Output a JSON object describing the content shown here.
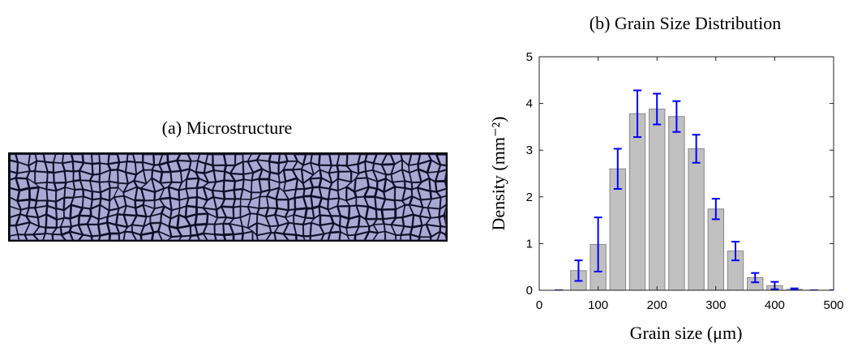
{
  "panel_a": {
    "title": "(a) Microstructure"
  },
  "chart_data": {
    "type": "bar",
    "title": "(b) Grain Size Distribution",
    "x_label": "Grain size (μm)",
    "y_label": "Density (mm⁻²)",
    "x": [
      33.3,
      66.7,
      100,
      133.3,
      166.7,
      200,
      233.3,
      266.7,
      300,
      333.3,
      366.7,
      400,
      433.3,
      466.7,
      500
    ],
    "values": [
      0,
      0.42,
      0.98,
      2.6,
      3.78,
      3.88,
      3.72,
      3.03,
      1.74,
      0.84,
      0.27,
      0.1,
      0.02,
      0,
      0
    ],
    "errors": [
      0,
      0.22,
      0.58,
      0.43,
      0.5,
      0.33,
      0.33,
      0.3,
      0.22,
      0.2,
      0.1,
      0.08,
      0.02,
      0,
      0
    ],
    "color": "#c0c0c0",
    "error_color": "#0000ff",
    "xlim": [
      0,
      500
    ],
    "xticks": [
      0,
      100,
      200,
      300,
      400,
      500
    ],
    "ylim": [
      0,
      5
    ],
    "yticks": [
      0,
      1,
      2,
      3,
      4,
      5
    ]
  }
}
